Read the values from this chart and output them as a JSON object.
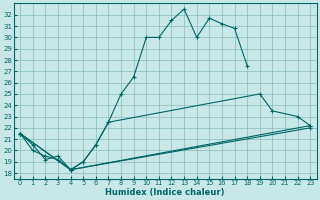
{
  "xlabel": "Humidex (Indice chaleur)",
  "bg_color": "#c8e8e8",
  "grid_color": "#88bbbb",
  "line_color": "#006666",
  "xlim": [
    -0.5,
    23.5
  ],
  "ylim": [
    17.5,
    33.0
  ],
  "xticks": [
    0,
    1,
    2,
    3,
    4,
    5,
    6,
    7,
    8,
    9,
    10,
    11,
    12,
    13,
    14,
    15,
    16,
    17,
    18,
    19,
    20,
    21,
    22,
    23
  ],
  "yticks": [
    18,
    19,
    20,
    21,
    22,
    23,
    24,
    25,
    26,
    27,
    28,
    29,
    30,
    31,
    32
  ],
  "line1": {
    "x": [
      0,
      1,
      2,
      3,
      4,
      5,
      6,
      7,
      8,
      9,
      10,
      11,
      12,
      13,
      14,
      15,
      16,
      17,
      18
    ],
    "y": [
      21.5,
      20.5,
      19.2,
      19.5,
      18.3,
      19.0,
      20.5,
      22.5,
      25.0,
      26.5,
      30.0,
      30.0,
      31.5,
      32.5,
      30.0,
      31.7,
      31.2,
      30.8,
      27.5
    ]
  },
  "line2": {
    "x": [
      0,
      1,
      2,
      3,
      4,
      5,
      6,
      7,
      19,
      20,
      22,
      23
    ],
    "y": [
      21.5,
      20.0,
      19.5,
      19.2,
      18.3,
      19.0,
      20.5,
      22.5,
      25.0,
      23.5,
      23.0,
      22.2
    ]
  },
  "line3": {
    "x": [
      0,
      4,
      23
    ],
    "y": [
      21.5,
      18.3,
      22.2
    ]
  },
  "line4": {
    "x": [
      0,
      4,
      23
    ],
    "y": [
      21.5,
      18.3,
      22.0
    ]
  }
}
